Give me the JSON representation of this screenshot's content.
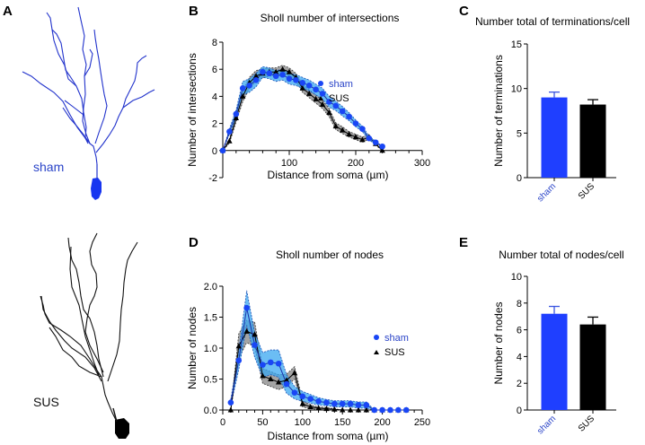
{
  "panels": {
    "A": {
      "letter": "A",
      "sham_label": "sham",
      "sus_label": "SUS"
    },
    "B": {
      "letter": "B"
    },
    "C": {
      "letter": "C"
    },
    "D": {
      "letter": "D"
    },
    "E": {
      "letter": "E"
    }
  },
  "colors": {
    "sham": "#1f3fff",
    "sham_marker": "#1946f5",
    "sham_band": "#3aa7f0",
    "sus": "#000000",
    "sus_band": "#9a9a9a",
    "neuron_sham": "#2233cc",
    "neuron_sus": "#111111"
  },
  "chart_data": [
    {
      "id": "B",
      "type": "line",
      "title": "Sholl number of intersections",
      "xlabel": "Distance from soma (µm)",
      "ylabel": "Number of intersections",
      "xlim": [
        0,
        300
      ],
      "ylim": [
        -2,
        8
      ],
      "xticks": [
        0,
        100,
        200,
        300
      ],
      "xtick_labels": [
        "",
        "100",
        "200",
        "300"
      ],
      "yticks": [
        -2,
        0,
        2,
        4,
        6,
        8
      ],
      "legend": "right",
      "x": [
        0,
        10,
        20,
        30,
        40,
        50,
        60,
        70,
        80,
        90,
        100,
        110,
        120,
        130,
        140,
        150,
        160,
        170,
        180,
        190,
        200,
        210,
        220,
        230,
        240
      ],
      "series": [
        {
          "name": "sham",
          "marker": "circle",
          "values": [
            0,
            1.4,
            2.7,
            4.6,
            4.8,
            5.2,
            5.8,
            5.7,
            5.5,
            5.6,
            5.3,
            5.2,
            5.0,
            4.8,
            4.5,
            4.2,
            3.6,
            3.3,
            2.9,
            2.5,
            2.0,
            1.6,
            0.9,
            0.6,
            0.3
          ],
          "sem": [
            0,
            0.2,
            0.3,
            0.5,
            0.5,
            0.5,
            0.4,
            0.4,
            0.4,
            0.4,
            0.4,
            0.4,
            0.4,
            0.4,
            0.4,
            0.4,
            0.4,
            0.35,
            0.35,
            0.3,
            0.25,
            0.2,
            0.15,
            0.1,
            0
          ]
        },
        {
          "name": "SUS",
          "marker": "triangle",
          "values": [
            0,
            0.7,
            2.4,
            4.0,
            5.0,
            5.5,
            5.7,
            5.8,
            5.8,
            6.0,
            5.8,
            5.4,
            4.6,
            4.2,
            3.8,
            3.4,
            2.8,
            1.8,
            1.5,
            1.2,
            1.0,
            0.8,
            1.0,
            0.5,
            0
          ],
          "sem": [
            0,
            0.15,
            0.3,
            0.4,
            0.4,
            0.4,
            0.35,
            0.3,
            0.3,
            0.3,
            0.3,
            0.3,
            0.3,
            0.3,
            0.3,
            0.3,
            0.3,
            0.25,
            0.25,
            0.2,
            0.2,
            0.2,
            0.15,
            0.1,
            0
          ]
        }
      ]
    },
    {
      "id": "C",
      "type": "bar",
      "title": "Number total of terminations/cell",
      "ylabel": "Number of terminations",
      "ylim": [
        0,
        15
      ],
      "yticks": [
        0,
        5,
        10,
        15
      ],
      "categories": [
        "sham",
        "SUS"
      ],
      "values": [
        9.0,
        8.2
      ],
      "errors": [
        0.6,
        0.55
      ]
    },
    {
      "id": "D",
      "type": "line",
      "title": "Sholl number of nodes",
      "xlabel": "Distance from soma (µm)",
      "ylabel": "Number of nodes",
      "xlim": [
        0,
        250
      ],
      "ylim": [
        0,
        2.0
      ],
      "xticks": [
        0,
        50,
        100,
        150,
        200,
        250
      ],
      "xtick_labels": [
        "0",
        "50",
        "100",
        "150",
        "200",
        "250"
      ],
      "yticks": [
        0.0,
        0.5,
        1.0,
        1.5,
        2.0
      ],
      "ytick_labels": [
        "0.0",
        "0.5",
        "1.0",
        "1.5",
        "2.0"
      ],
      "legend": "right",
      "x": [
        10,
        20,
        30,
        40,
        50,
        60,
        70,
        80,
        90,
        100,
        110,
        120,
        130,
        140,
        150,
        160,
        170,
        180,
        190,
        200,
        210,
        220,
        230
      ],
      "series": [
        {
          "name": "sham",
          "marker": "circle",
          "values": [
            0.12,
            0.8,
            1.65,
            1.05,
            0.73,
            0.77,
            0.75,
            0.42,
            0.28,
            0.22,
            0.18,
            0.14,
            0.12,
            0.1,
            0.1,
            0.1,
            0.08,
            0.08,
            0,
            0,
            0,
            0,
            0
          ],
          "sem": [
            0.05,
            0.15,
            0.28,
            0.2,
            0.2,
            0.2,
            0.22,
            0.15,
            0.1,
            0.08,
            0.07,
            0.06,
            0.05,
            0.05,
            0.05,
            0.05,
            0.05,
            0.05,
            0,
            0,
            0,
            0,
            0
          ]
        },
        {
          "name": "SUS",
          "marker": "triangle",
          "values": [
            0,
            1.03,
            1.27,
            1.22,
            0.55,
            0.5,
            0.45,
            0.48,
            0.6,
            0.1,
            0.05,
            0.03,
            0.02,
            0.01,
            0,
            0,
            0,
            0,
            0,
            0,
            0,
            0,
            0
          ],
          "sem": [
            0,
            0.2,
            0.18,
            0.2,
            0.12,
            0.12,
            0.12,
            0.1,
            0.1,
            0.05,
            0.03,
            0.02,
            0.02,
            0.01,
            0,
            0,
            0,
            0,
            0,
            0,
            0,
            0,
            0
          ]
        }
      ]
    },
    {
      "id": "E",
      "type": "bar",
      "title": "Number total of nodes/cell",
      "ylabel": "Number of nodes",
      "ylim": [
        0,
        10
      ],
      "yticks": [
        0,
        2,
        4,
        6,
        8,
        10
      ],
      "categories": [
        "sham",
        "SUS"
      ],
      "values": [
        7.2,
        6.4
      ],
      "errors": [
        0.55,
        0.55
      ]
    }
  ]
}
